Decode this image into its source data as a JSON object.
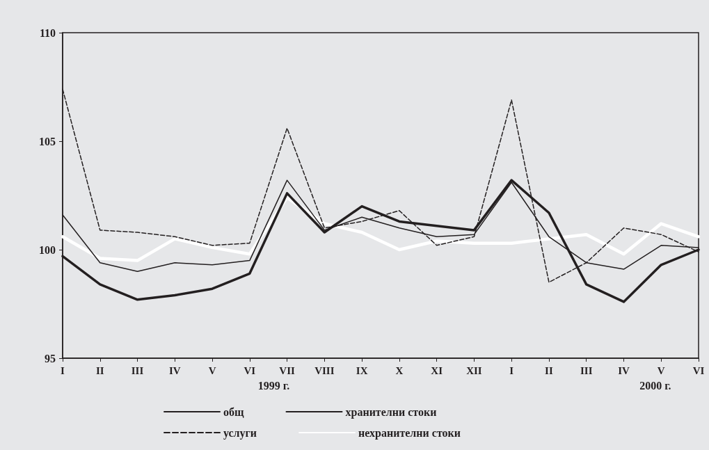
{
  "chart_data": {
    "type": "line",
    "categories": [
      "I",
      "II",
      "III",
      "IV",
      "V",
      "VI",
      "VII",
      "VIII",
      "IX",
      "X",
      "XI",
      "XII",
      "I",
      "II",
      "III",
      "IV",
      "V",
      "VI"
    ],
    "series": [
      {
        "name": "общ",
        "color": "#231f20",
        "line_style": "solid",
        "values": [
          101.6,
          99.4,
          99.0,
          99.4,
          99.3,
          99.5,
          103.2,
          100.9,
          101.5,
          101.0,
          100.6,
          100.7,
          103.1,
          100.6,
          99.4,
          99.1,
          100.2,
          100.1
        ]
      },
      {
        "name": "услуги",
        "color": "#231f20",
        "line_style": "dashed",
        "values": [
          107.4,
          100.9,
          100.8,
          100.6,
          100.2,
          100.3,
          105.6,
          101.0,
          101.3,
          101.8,
          100.2,
          100.6,
          106.9,
          98.5,
          99.4,
          101.0,
          100.7,
          99.9
        ]
      },
      {
        "name": "хранителни стоки",
        "color": "#231f20",
        "line_style": "solid",
        "values": [
          99.7,
          98.4,
          97.7,
          97.9,
          98.2,
          98.9,
          102.6,
          100.8,
          102.0,
          101.3,
          101.1,
          100.9,
          103.2,
          101.7,
          98.4,
          97.6,
          99.3,
          100.0
        ]
      },
      {
        "name": "нехранителни стоки",
        "color": "#ffffff",
        "line_style": "solid",
        "values": [
          100.6,
          99.6,
          99.5,
          100.5,
          100.1,
          99.8,
          102.4,
          101.2,
          100.8,
          100.0,
          100.4,
          100.3,
          100.3,
          100.5,
          100.7,
          99.8,
          101.2,
          100.6
        ]
      }
    ],
    "ylim": [
      95,
      110
    ],
    "yticks": [
      95,
      100,
      105,
      110
    ],
    "grid": false,
    "legend": "bottom",
    "marker": "none",
    "annotations": [
      "1999 г.",
      "2000 г."
    ]
  }
}
